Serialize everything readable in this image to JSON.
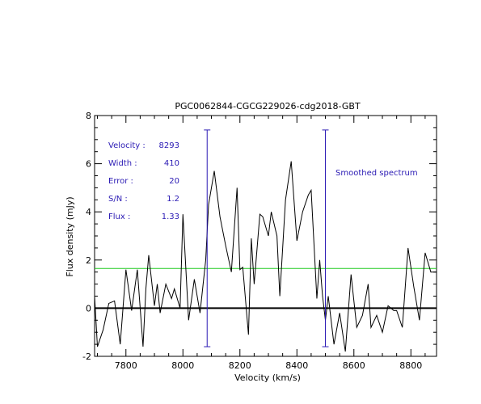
{
  "chart_data": {
    "type": "line",
    "title": "PGC0062844-CGCG229026-cdg2018-GBT",
    "xlabel": "Velocity (km/s)",
    "ylabel": "Flux density (mJy)",
    "xlim": [
      7690,
      8890
    ],
    "ylim": [
      -2,
      8
    ],
    "xticks": [
      7800,
      8000,
      8200,
      8400,
      8600,
      8800
    ],
    "yticks": [
      -2,
      0,
      2,
      4,
      6,
      8
    ],
    "x_minor_step": 50,
    "y_minor_step": 0.5,
    "grid": false,
    "colors": {
      "spectrum": "#000000",
      "markers": "#2a1ab4",
      "baseline_level": "#22cc22",
      "zero_line": "#000000",
      "annotations": "#2a1ab4"
    },
    "x": [
      7690,
      7700,
      7720,
      7740,
      7760,
      7780,
      7800,
      7820,
      7840,
      7860,
      7870,
      7880,
      7900,
      7910,
      7920,
      7940,
      7960,
      7970,
      7990,
      8000,
      8020,
      8040,
      8060,
      8080,
      8090,
      8110,
      8130,
      8150,
      8170,
      8190,
      8200,
      8210,
      8230,
      8240,
      8250,
      8270,
      8280,
      8300,
      8310,
      8330,
      8340,
      8360,
      8380,
      8400,
      8420,
      8440,
      8450,
      8470,
      8480,
      8490,
      8500,
      8510,
      8530,
      8550,
      8570,
      8590,
      8610,
      8630,
      8650,
      8660,
      8680,
      8700,
      8720,
      8740,
      8750,
      8770,
      8790,
      8810,
      8830,
      8850,
      8870,
      8880,
      8890
    ],
    "series": [
      {
        "values": [
          0.5,
          -1.6,
          -0.9,
          0.2,
          0.3,
          -1.5,
          1.6,
          -0.1,
          1.6,
          -1.6,
          0.8,
          2.2,
          0.1,
          1.0,
          -0.2,
          1.0,
          0.4,
          0.8,
          0.0,
          3.9,
          -0.5,
          1.2,
          -0.2,
          2.0,
          4.3,
          5.7,
          3.8,
          2.6,
          1.5,
          5.0,
          1.6,
          1.7,
          -1.1,
          2.9,
          1.0,
          3.9,
          3.8,
          3.0,
          4.0,
          3.0,
          0.5,
          4.5,
          6.1,
          2.8,
          4.0,
          4.7,
          4.9,
          0.4,
          2.0,
          0.5,
          -0.5,
          0.5,
          -1.5,
          -0.2,
          -1.8,
          1.4,
          -0.8,
          -0.3,
          1.0,
          -0.8,
          -0.3,
          -1.0,
          0.1,
          -0.1,
          -0.1,
          -0.8,
          2.5,
          0.9,
          -0.5,
          2.3,
          1.5,
          1.5,
          1.5
        ]
      }
    ],
    "markers": [
      {
        "x": 8085,
        "y_range": [
          -1.6,
          7.4
        ]
      },
      {
        "x": 8500,
        "y_range": [
          -1.6,
          7.4
        ]
      }
    ],
    "hlines": [
      {
        "y": 1.65,
        "role": "baseline_level"
      },
      {
        "y": 0,
        "role": "zero_line"
      }
    ],
    "annotations": {
      "rows": [
        {
          "label": "Velocity :",
          "value": "8293"
        },
        {
          "label": "Width :",
          "value": "410"
        },
        {
          "label": "Error :",
          "value": "20"
        },
        {
          "label": "S/N :",
          "value": "1.2"
        },
        {
          "label": "Flux :",
          "value": "1.33"
        }
      ],
      "note": "Smoothed spectrum"
    }
  }
}
